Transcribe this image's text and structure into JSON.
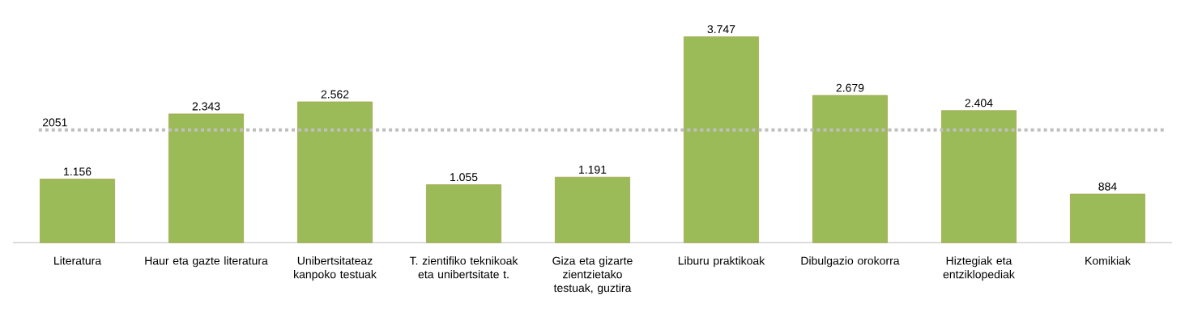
{
  "chart_data": {
    "type": "bar",
    "categories": [
      "Literatura",
      "Haur eta gazte literatura",
      "Unibertsitateaz kanpoko testuak",
      "T. zientifiko teknikoak eta unibertsitate t.",
      "Giza eta gizarte zientzietako testuak, guztira",
      "Liburu praktikoak",
      "Dibulgazio orokorra",
      "Hiztegiak eta entziklopediak",
      "Komikiak"
    ],
    "values": [
      1156,
      2343,
      2562,
      1055,
      1191,
      3747,
      2679,
      2404,
      884
    ],
    "value_labels": [
      "1.156",
      "2.343",
      "2.562",
      "1.055",
      "1.191",
      "3.747",
      "2.679",
      "2.404",
      "884"
    ],
    "color": "#9bbb59",
    "ref_lines": [
      {
        "axis": "y",
        "value": 2051,
        "label": "2051",
        "color": "#bfbfbf",
        "line_style": "dotted"
      }
    ]
  }
}
